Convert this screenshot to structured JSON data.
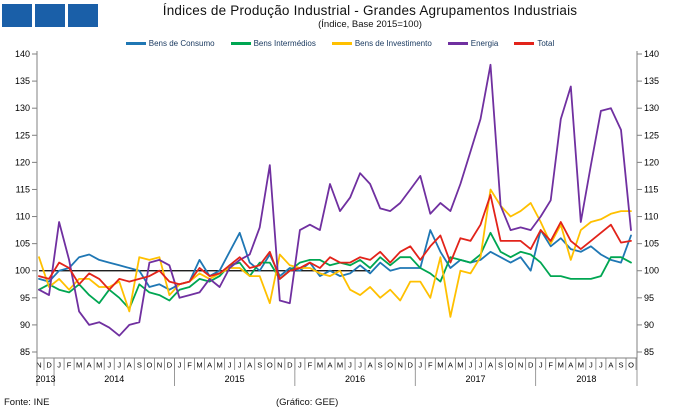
{
  "header": {
    "title": "Índices de Produção Industrial - Grandes Agrupamentos Industriais",
    "subtitle": "(Índice, Base 2015=100)",
    "square_colors": [
      "#1A5FA8",
      "#1A5FA8",
      "#1A5FA8"
    ]
  },
  "legend": {
    "items": [
      {
        "label": "Bens de Consumo",
        "color": "#1F77B4"
      },
      {
        "label": "Bens Intermédios",
        "color": "#00A652"
      },
      {
        "label": "Bens de Investimento",
        "color": "#FFC000"
      },
      {
        "label": "Energia",
        "color": "#7030A0"
      },
      {
        "label": "Total",
        "color": "#E2231A"
      }
    ]
  },
  "chart_data": {
    "type": "line",
    "title": "Índices de Produção Industrial - Grandes Agrupamentos Industriais",
    "subtitle": "(Índice, Base 2015=100)",
    "ylim": [
      85,
      140
    ],
    "ytick_step": 5,
    "grid": false,
    "legend_position": "top",
    "axis_color": "#808080",
    "text_color": "#000000",
    "reference_line": {
      "value": 100,
      "from_index": 0,
      "to_index": 33,
      "color": "#000000"
    },
    "month_letters": [
      "N",
      "D",
      "J",
      "F",
      "M",
      "A",
      "M",
      "J",
      "J",
      "A",
      "S",
      "O",
      "N",
      "D",
      "J",
      "F",
      "M",
      "A",
      "M",
      "J",
      "J",
      "A",
      "S",
      "O",
      "N",
      "D",
      "J",
      "F",
      "M",
      "A",
      "M",
      "J",
      "J",
      "A",
      "S",
      "O",
      "N",
      "D",
      "J",
      "F",
      "M",
      "A",
      "M",
      "J",
      "J",
      "A",
      "S",
      "O",
      "N",
      "D",
      "J",
      "F",
      "M",
      "A",
      "M",
      "J",
      "J",
      "A",
      "S",
      "O"
    ],
    "years": [
      {
        "label": "2013",
        "from": 0,
        "to": 1
      },
      {
        "label": "2014",
        "from": 2,
        "to": 13
      },
      {
        "label": "2015",
        "from": 14,
        "to": 25
      },
      {
        "label": "2016",
        "from": 26,
        "to": 37
      },
      {
        "label": "2017",
        "from": 38,
        "to": 49
      },
      {
        "label": "2018",
        "from": 50,
        "to": 59
      }
    ],
    "series": [
      {
        "name": "Bens de Consumo",
        "color": "#1F77B4",
        "values": [
          98.5,
          98,
          100,
          100.5,
          102.5,
          103,
          102,
          101.5,
          101,
          100.5,
          100,
          97,
          97.5,
          96.5,
          97.5,
          98,
          102,
          99,
          100,
          103.5,
          107,
          101.5,
          100,
          103,
          99,
          100.5,
          100,
          101.5,
          99,
          100,
          99,
          99.5,
          101,
          99.5,
          101.5,
          100,
          100.5,
          100.5,
          100.5,
          107.5,
          103.5,
          100.5,
          102,
          101.5,
          102,
          103.5,
          102.5,
          101.5,
          102.5,
          100,
          107.5,
          104.5,
          106,
          104,
          103.5,
          104.5,
          103,
          102,
          101.5,
          106.5
        ]
      },
      {
        "name": "Bens Intermédios",
        "color": "#00A652",
        "values": [
          96.5,
          97.5,
          96.5,
          96,
          97.5,
          95.5,
          94,
          96.5,
          95,
          93,
          97.5,
          96,
          95.5,
          94.5,
          96.5,
          97,
          98.5,
          98,
          99,
          101,
          101.5,
          99,
          101.5,
          101.5,
          98.5,
          100,
          101.5,
          102,
          102,
          101,
          101.5,
          101,
          102,
          100.5,
          102.5,
          101,
          102.5,
          102.5,
          100.5,
          99.5,
          98,
          102.5,
          102,
          101.5,
          103,
          107,
          103.5,
          102.5,
          103.5,
          103,
          101.5,
          99,
          99,
          98.5,
          98.5,
          98.5,
          99,
          102.5,
          102.5,
          101.5
        ]
      },
      {
        "name": "Bens de Investimento",
        "color": "#FFC000",
        "values": [
          102.5,
          97,
          98.5,
          96.5,
          98.5,
          98.5,
          97,
          97,
          98,
          92.5,
          102.5,
          102,
          102.5,
          95.5,
          97.5,
          98,
          99.5,
          98.5,
          99.5,
          100.5,
          100.5,
          99,
          99,
          94,
          103,
          101,
          100.5,
          100.5,
          99.5,
          99,
          100,
          96.5,
          95.5,
          97,
          95,
          96.5,
          94.5,
          98,
          98,
          95,
          102.5,
          91.5,
          100,
          99.5,
          102.5,
          115,
          112,
          110,
          111,
          112.5,
          109,
          105,
          108.5,
          102,
          107.5,
          109,
          109.5,
          110.5,
          111,
          111
        ]
      },
      {
        "name": "Energia",
        "color": "#7030A0",
        "values": [
          96.5,
          95.5,
          109,
          102,
          92.5,
          90,
          90.5,
          89.5,
          88,
          90,
          90.5,
          101.5,
          102,
          101,
          95,
          95.5,
          96,
          98.5,
          97,
          100.5,
          102,
          103,
          108,
          119.5,
          94.5,
          94,
          107.5,
          108.5,
          107.5,
          116,
          111,
          113.5,
          118,
          116,
          111.5,
          111,
          112.5,
          115,
          117.5,
          110.5,
          112.5,
          111,
          116,
          122,
          128,
          138,
          112,
          107.5,
          108,
          107.5,
          110,
          113,
          128,
          134,
          109,
          119.5,
          129.5,
          130,
          126,
          107.5
        ]
      },
      {
        "name": "Total",
        "color": "#E2231A",
        "values": [
          99,
          98.5,
          101.5,
          100.5,
          97.5,
          99.5,
          98.5,
          96.5,
          98.5,
          98,
          98.5,
          99,
          100,
          98,
          97.5,
          98,
          100.5,
          99,
          99.5,
          101,
          102.5,
          100.5,
          101,
          103.5,
          98.5,
          100,
          100.5,
          101.5,
          100.5,
          102.5,
          101.5,
          101.5,
          102.5,
          102,
          103.5,
          101.5,
          103.5,
          104.5,
          102,
          104.5,
          106.5,
          101.5,
          106,
          105.5,
          108.5,
          114,
          105.5,
          105.5,
          105.5,
          104,
          107.5,
          105.5,
          109,
          105.5,
          104,
          105.5,
          107,
          108.5,
          105.2,
          105.5
        ]
      }
    ]
  },
  "footer": {
    "source": "Fonte: INE",
    "credit": "(Gráfico: GEE)"
  }
}
